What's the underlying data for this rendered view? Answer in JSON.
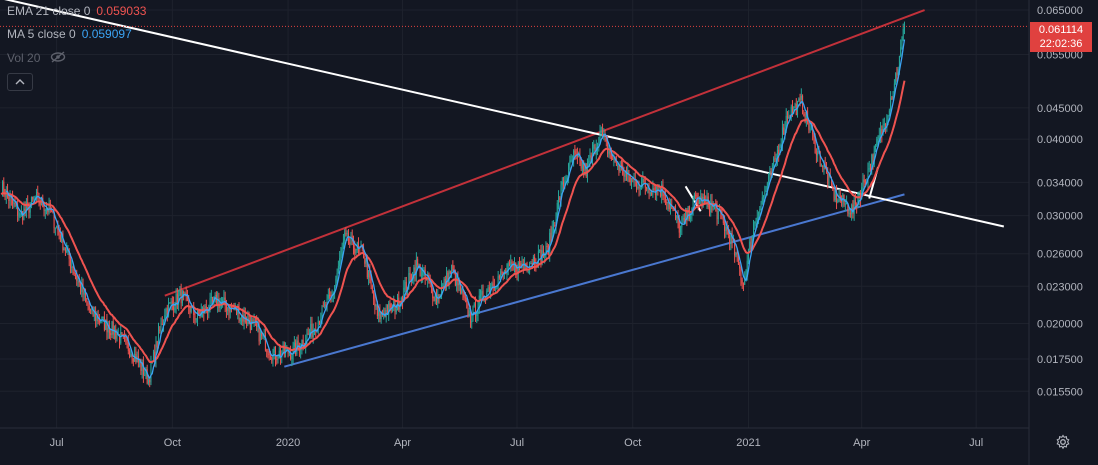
{
  "legend": {
    "ema": {
      "label": "EMA 21 close 0",
      "value": "0.059033",
      "color": "#ef5350"
    },
    "ma": {
      "label": "MA 5 close 0",
      "value": "0.059097",
      "color": "#3ba4f5"
    },
    "vol": {
      "label": "Vol 20",
      "icon": "eye-crossed-icon"
    }
  },
  "last_price": {
    "value": "0.061114",
    "countdown": "22:02:36"
  },
  "colors": {
    "background": "#131722",
    "grid": "#1e222d",
    "axis_text": "#b2b5be",
    "up": "#26a69a",
    "down": "#ef5350",
    "ema": "#ef5350",
    "ma": "#3ba4f5",
    "resistance": "#c2313a",
    "support": "#4a78d0",
    "downtrend": "#ffffff"
  },
  "chart_data": {
    "type": "candlestick",
    "y_scale": "log",
    "ylim": [
      0.0135,
      0.0675
    ],
    "y_ticks": [
      "0.065000",
      "0.055000",
      "0.045000",
      "0.040000",
      "0.034000",
      "0.030000",
      "0.026000",
      "0.023000",
      "0.020000",
      "0.017500",
      "0.015500"
    ],
    "x_ticks": [
      "Jul",
      "Oct",
      "2020",
      "Apr",
      "Jul",
      "Oct",
      "2021",
      "Apr",
      "Jul"
    ],
    "xlim": [
      "2019-05-17",
      "2021-08-12"
    ],
    "price_path": [
      [
        "2019-05-18",
        0.0335
      ],
      [
        "2019-06-02",
        0.03
      ],
      [
        "2019-06-15",
        0.032
      ],
      [
        "2019-06-26",
        0.0305
      ],
      [
        "2019-07-10",
        0.0258
      ],
      [
        "2019-07-28",
        0.0208
      ],
      [
        "2019-08-15",
        0.0195
      ],
      [
        "2019-08-30",
        0.018
      ],
      [
        "2019-09-12",
        0.0162
      ],
      [
        "2019-09-25",
        0.021
      ],
      [
        "2019-10-08",
        0.0222
      ],
      [
        "2019-10-20",
        0.0205
      ],
      [
        "2019-11-05",
        0.0218
      ],
      [
        "2019-11-20",
        0.021
      ],
      [
        "2019-12-05",
        0.0198
      ],
      [
        "2019-12-20",
        0.0178
      ],
      [
        "2020-01-05",
        0.018
      ],
      [
        "2020-01-20",
        0.0195
      ],
      [
        "2020-02-05",
        0.0222
      ],
      [
        "2020-02-15",
        0.0275
      ],
      [
        "2020-03-01",
        0.026
      ],
      [
        "2020-03-12",
        0.0205
      ],
      [
        "2020-03-28",
        0.0215
      ],
      [
        "2020-04-12",
        0.025
      ],
      [
        "2020-04-28",
        0.022
      ],
      [
        "2020-05-10",
        0.0245
      ],
      [
        "2020-05-25",
        0.0205
      ],
      [
        "2020-06-10",
        0.0232
      ],
      [
        "2020-06-25",
        0.0245
      ],
      [
        "2020-07-10",
        0.0252
      ],
      [
        "2020-07-25",
        0.0262
      ],
      [
        "2020-08-05",
        0.033
      ],
      [
        "2020-08-15",
        0.0375
      ],
      [
        "2020-08-25",
        0.0355
      ],
      [
        "2020-09-05",
        0.041
      ],
      [
        "2020-09-15",
        0.037
      ],
      [
        "2020-09-28",
        0.0345
      ],
      [
        "2020-10-12",
        0.0335
      ],
      [
        "2020-10-25",
        0.033
      ],
      [
        "2020-11-08",
        0.0285
      ],
      [
        "2020-11-20",
        0.032
      ],
      [
        "2020-12-05",
        0.031
      ],
      [
        "2020-12-18",
        0.0275
      ],
      [
        "2020-12-28",
        0.0232
      ],
      [
        "2021-01-05",
        0.029
      ],
      [
        "2021-01-20",
        0.0355
      ],
      [
        "2021-02-01",
        0.044
      ],
      [
        "2021-02-12",
        0.0458
      ],
      [
        "2021-02-25",
        0.038
      ],
      [
        "2021-03-10",
        0.0325
      ],
      [
        "2021-03-25",
        0.0305
      ],
      [
        "2021-04-05",
        0.035
      ],
      [
        "2021-04-20",
        0.043
      ],
      [
        "2021-05-01",
        0.054
      ],
      [
        "2021-05-05",
        0.0611
      ]
    ],
    "trendlines": [
      {
        "name": "resistance",
        "color": "#c2313a",
        "from": [
          "2019-09-25",
          0.0222
        ],
        "to": [
          "2021-05-21",
          0.065
        ]
      },
      {
        "name": "support",
        "color": "#4a78d0",
        "from": [
          "2019-12-29",
          0.017
        ],
        "to": [
          "2021-05-05",
          0.0325
        ]
      },
      {
        "name": "downtrend",
        "color": "#ffffff",
        "from": [
          "2019-05-17",
          0.068
        ],
        "to": [
          "2021-07-23",
          0.0288
        ]
      },
      {
        "name": "small-downtrend",
        "color": "#ffffff",
        "from": [
          "2020-11-12",
          0.0335
        ],
        "to": [
          "2020-11-24",
          0.0305
        ]
      },
      {
        "name": "small-uptrend",
        "color": "#ffffff",
        "from": [
          "2021-04-07",
          0.032
        ],
        "to": [
          "2021-04-14",
          0.036
        ]
      }
    ]
  }
}
